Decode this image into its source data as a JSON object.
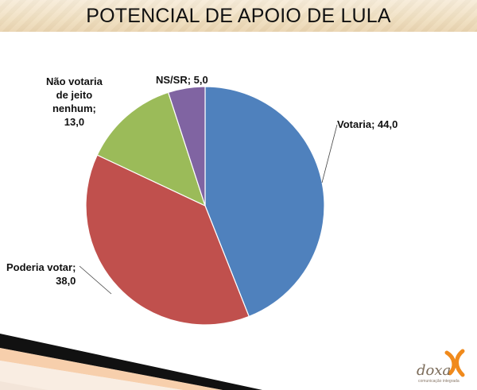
{
  "title": "POTENCIAL DE APOIO DE LULA",
  "logo": {
    "word": "doxa",
    "tagline": "comunicação integrada"
  },
  "colors": {
    "accent_orange": "#f08a1c",
    "footer_black": "#111111"
  },
  "chart_data": {
    "type": "pie",
    "slices": [
      {
        "label_lines": [
          "Votaria; 44,0"
        ],
        "value": 44.0,
        "color": "#4f81bd"
      },
      {
        "label_lines": [
          "Poderia votar;",
          "38,0"
        ],
        "value": 38.0,
        "color": "#c0504d"
      },
      {
        "label_lines": [
          "Não votaria",
          "de jeito",
          "nenhum;",
          "13,0"
        ],
        "value": 13.0,
        "color": "#9bbb59"
      },
      {
        "label_lines": [
          "NS/SR; 5,0"
        ],
        "value": 5.0,
        "color": "#8064a2"
      }
    ]
  }
}
